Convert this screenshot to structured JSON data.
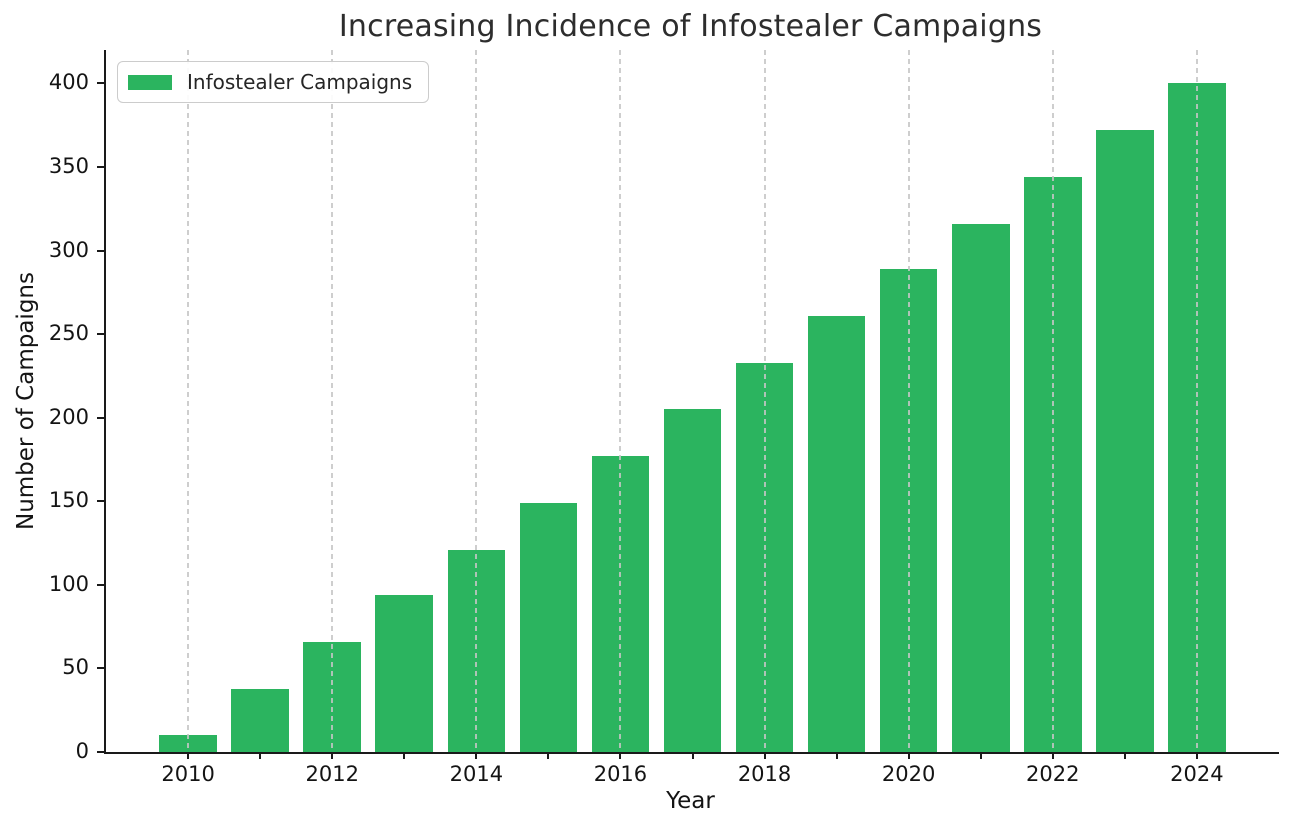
{
  "chart_data": {
    "type": "bar",
    "title": "Increasing Incidence of Infostealer Campaigns",
    "xlabel": "Year",
    "ylabel": "Number of Campaigns",
    "legend_label": "Infostealer Campaigns",
    "legend_position": "upper-left",
    "categories": [
      "2010",
      "2011",
      "2012",
      "2013",
      "2014",
      "2015",
      "2016",
      "2017",
      "2018",
      "2019",
      "2020",
      "2021",
      "2022",
      "2023",
      "2024"
    ],
    "values": [
      10,
      38,
      66,
      94,
      121,
      149,
      177,
      205,
      233,
      261,
      289,
      316,
      344,
      372,
      400
    ],
    "yticks": [
      0,
      50,
      100,
      150,
      200,
      250,
      300,
      350,
      400
    ],
    "xtick_labels": [
      "2010",
      "2012",
      "2014",
      "2016",
      "2018",
      "2020",
      "2022",
      "2024"
    ],
    "xtick_label_interval": 2,
    "ylim": [
      0,
      420
    ],
    "grid": "vertical dashed gridlines at labeled years, drawn over bars",
    "bar_color": "#2bb45f",
    "grid_color": "#c6c6c6",
    "spine_color": "#1a1a1a",
    "title_color": "#2d2d2d",
    "tick_color": "#141414",
    "legend_border_color": "#cccccc",
    "bar_width_fraction": 0.8
  }
}
